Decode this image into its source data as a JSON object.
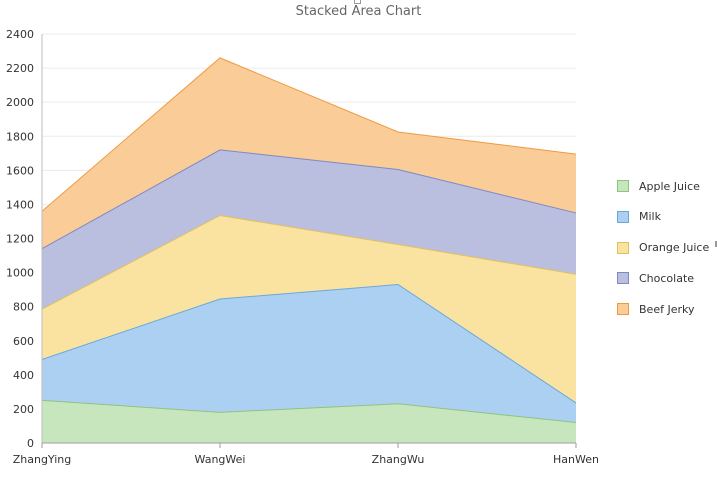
{
  "chart_data": {
    "type": "area",
    "stacked": true,
    "title": "Stacked Area Chart",
    "categories": [
      "ZhangYing",
      "WangWei",
      "ZhangWu",
      "HanWen"
    ],
    "series": [
      {
        "name": "Apple Juice",
        "values": [
          250,
          180,
          230,
          120
        ],
        "color": "#c8e6bd",
        "line": "#8ec47f"
      },
      {
        "name": "Milk",
        "values": [
          240,
          665,
          700,
          115
        ],
        "color": "#abd0f2",
        "line": "#6aa8dc"
      },
      {
        "name": "Orange Juice",
        "values": [
          295,
          490,
          235,
          755
        ],
        "color": "#fae3a0",
        "line": "#e0c060"
      },
      {
        "name": "Chocolate",
        "values": [
          355,
          385,
          440,
          360
        ],
        "color": "#babedf",
        "line": "#8088c4"
      },
      {
        "name": "Beef Jerky",
        "values": [
          220,
          540,
          220,
          345
        ],
        "color": "#f9cc98",
        "line": "#f09a40"
      }
    ],
    "ylim": [
      0,
      2400
    ],
    "yticks": [
      0,
      200,
      400,
      600,
      800,
      1000,
      1200,
      1400,
      1600,
      1800,
      2000,
      2200,
      2400
    ],
    "grid": true,
    "legend_position": "right"
  }
}
